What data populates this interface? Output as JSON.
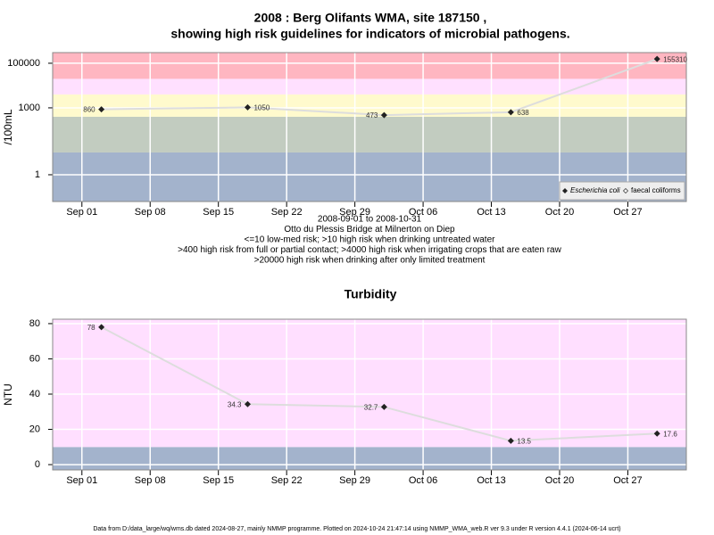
{
  "chart_data": [
    {
      "type": "line",
      "title": [
        "2008 : Berg Olifants WMA, site 187150 ,",
        "showing high risk guidelines for indicators of microbial pathogens."
      ],
      "ylabel": "/100mL",
      "log_scale": true,
      "grid": true,
      "ylim": [
        0.063,
        300000
      ],
      "yticks": [
        1,
        1000,
        100000
      ],
      "xlim": [
        "2008-08-29",
        "2008-11-02"
      ],
      "xticks": [
        {
          "value": "2008-09-01",
          "label": "Sep 01"
        },
        {
          "value": "2008-09-08",
          "label": "Sep 08"
        },
        {
          "value": "2008-09-15",
          "label": "Sep 15"
        },
        {
          "value": "2008-09-22",
          "label": "Sep 22"
        },
        {
          "value": "2008-09-29",
          "label": "Sep 29"
        },
        {
          "value": "2008-10-06",
          "label": "Oct 06"
        },
        {
          "value": "2008-10-13",
          "label": "Oct 13"
        },
        {
          "value": "2008-10-20",
          "label": "Oct 20"
        },
        {
          "value": "2008-10-27",
          "label": "Oct 27"
        }
      ],
      "bands": [
        {
          "min": null,
          "color": "#a3b3cc"
        },
        {
          "min": 10,
          "color": "#c2ccc0"
        },
        {
          "min": 400,
          "color": "#fffacd"
        },
        {
          "min": 4000,
          "color": "#ffe0ff"
        },
        {
          "min": 20000,
          "color": "#ffb6c1"
        }
      ],
      "x": [
        "2008-09-03",
        "2008-09-18",
        "2008-10-02",
        "2008-10-15",
        "2008-10-30"
      ],
      "series": [
        {
          "name": "Escherichia coli",
          "color": "#222222",
          "values": [
            860,
            1050,
            473,
            638,
            155310
          ]
        },
        {
          "name": "faecal coliforms",
          "color": "#222222",
          "values": [
            null,
            null,
            null,
            null,
            null
          ]
        }
      ],
      "legend": "lower right",
      "notes": [
        "2008-09-01 to 2008-10-31",
        "Otto du Plessis Bridge at Milnerton on Diep",
        "<=10 low-med risk; >10 high risk when drinking untreated water",
        ">400 high risk from full or partial contact; >4000 high risk when irrigating crops that are eaten raw",
        ">20000 high risk when drinking after only limited treatment"
      ]
    },
    {
      "type": "line",
      "title": [
        "Turbidity"
      ],
      "ylabel": "NTU",
      "log_scale": false,
      "grid": true,
      "ylim": [
        -3,
        82.5
      ],
      "yticks": [
        0,
        20,
        40,
        60,
        80
      ],
      "xlim": [
        "2008-08-29",
        "2008-11-02"
      ],
      "xticks": [
        {
          "value": "2008-09-01",
          "label": "Sep 01"
        },
        {
          "value": "2008-09-08",
          "label": "Sep 08"
        },
        {
          "value": "2008-09-15",
          "label": "Sep 15"
        },
        {
          "value": "2008-09-22",
          "label": "Sep 22"
        },
        {
          "value": "2008-09-29",
          "label": "Sep 29"
        },
        {
          "value": "2008-10-06",
          "label": "Oct 06"
        },
        {
          "value": "2008-10-13",
          "label": "Oct 13"
        },
        {
          "value": "2008-10-20",
          "label": "Oct 20"
        },
        {
          "value": "2008-10-27",
          "label": "Oct 27"
        }
      ],
      "bands": [
        {
          "min": null,
          "color": "#a3b3cc"
        },
        {
          "min": 10,
          "color": "#ffdfff"
        }
      ],
      "x": [
        "2008-09-03",
        "2008-09-18",
        "2008-10-02",
        "2008-10-15",
        "2008-10-30"
      ],
      "series": [
        {
          "name": "Turbidity",
          "color": "#222222",
          "values": [
            78,
            34.3,
            32.7,
            13.5,
            17.6
          ]
        }
      ]
    }
  ],
  "footer": "Data from D:/data_large/wq/wms.db dated 2024-08-27, mainly NMMP programme. Plotted on 2024-10-24 21:47:14 using NMMP_WMA_web.R ver 9.3 under R version 4.4.1 (2024-06-14 ucrt)"
}
